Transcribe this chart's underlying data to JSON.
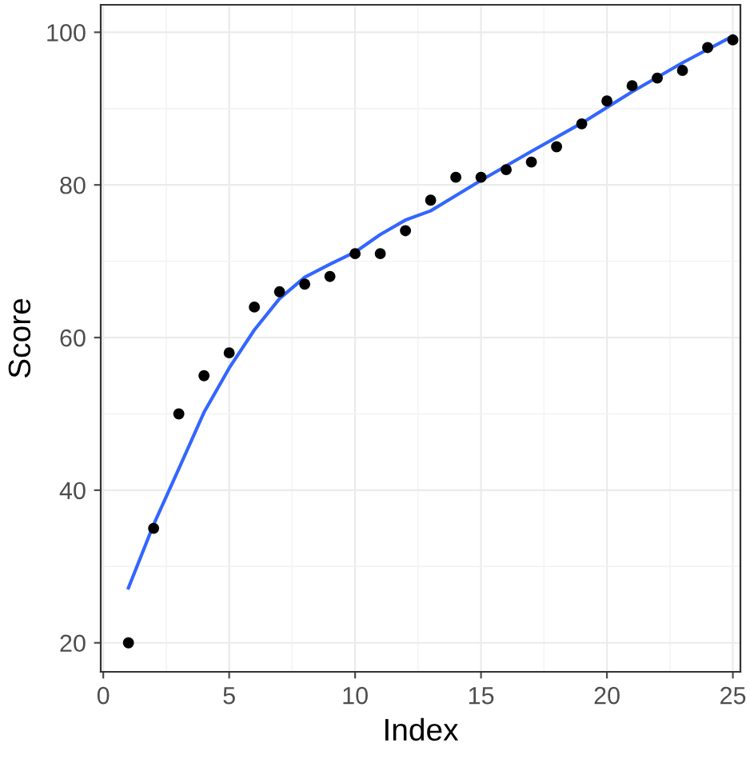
{
  "chart_data": {
    "type": "scatter",
    "xlabel": "Index",
    "ylabel": "Score",
    "xlim": [
      -0.1,
      25.3
    ],
    "ylim": [
      16.2,
      103.6
    ],
    "xticks": [
      0,
      5,
      10,
      15,
      20,
      25
    ],
    "yticks": [
      20,
      40,
      60,
      80,
      100
    ],
    "grid": true,
    "series": [
      {
        "color": "#000000",
        "marker": "circle",
        "x": [
          1,
          2,
          3,
          4,
          5,
          6,
          7,
          8,
          9,
          10,
          11,
          12,
          13,
          14,
          15,
          16,
          17,
          18,
          19,
          20,
          21,
          22,
          23,
          24,
          25
        ],
        "values": [
          20,
          35,
          50,
          55,
          58,
          64,
          66,
          67,
          68,
          71,
          71,
          74,
          78,
          81,
          81,
          82,
          83,
          85,
          88,
          91,
          93,
          94,
          95,
          98,
          99
        ]
      },
      {
        "type": "line",
        "color": "#3366ff",
        "marker": "none",
        "x": [
          1,
          2,
          3,
          4,
          5,
          6,
          7,
          8,
          9,
          10,
          11,
          12,
          13,
          15,
          17,
          19,
          21,
          23,
          25
        ],
        "values": [
          27.2,
          35.5,
          42.8,
          50.2,
          56,
          61,
          65.1,
          67.9,
          69.6,
          71.2,
          73.5,
          75.4,
          76.6,
          80.6,
          84.4,
          88.1,
          92.2,
          96,
          99.5
        ]
      }
    ]
  }
}
